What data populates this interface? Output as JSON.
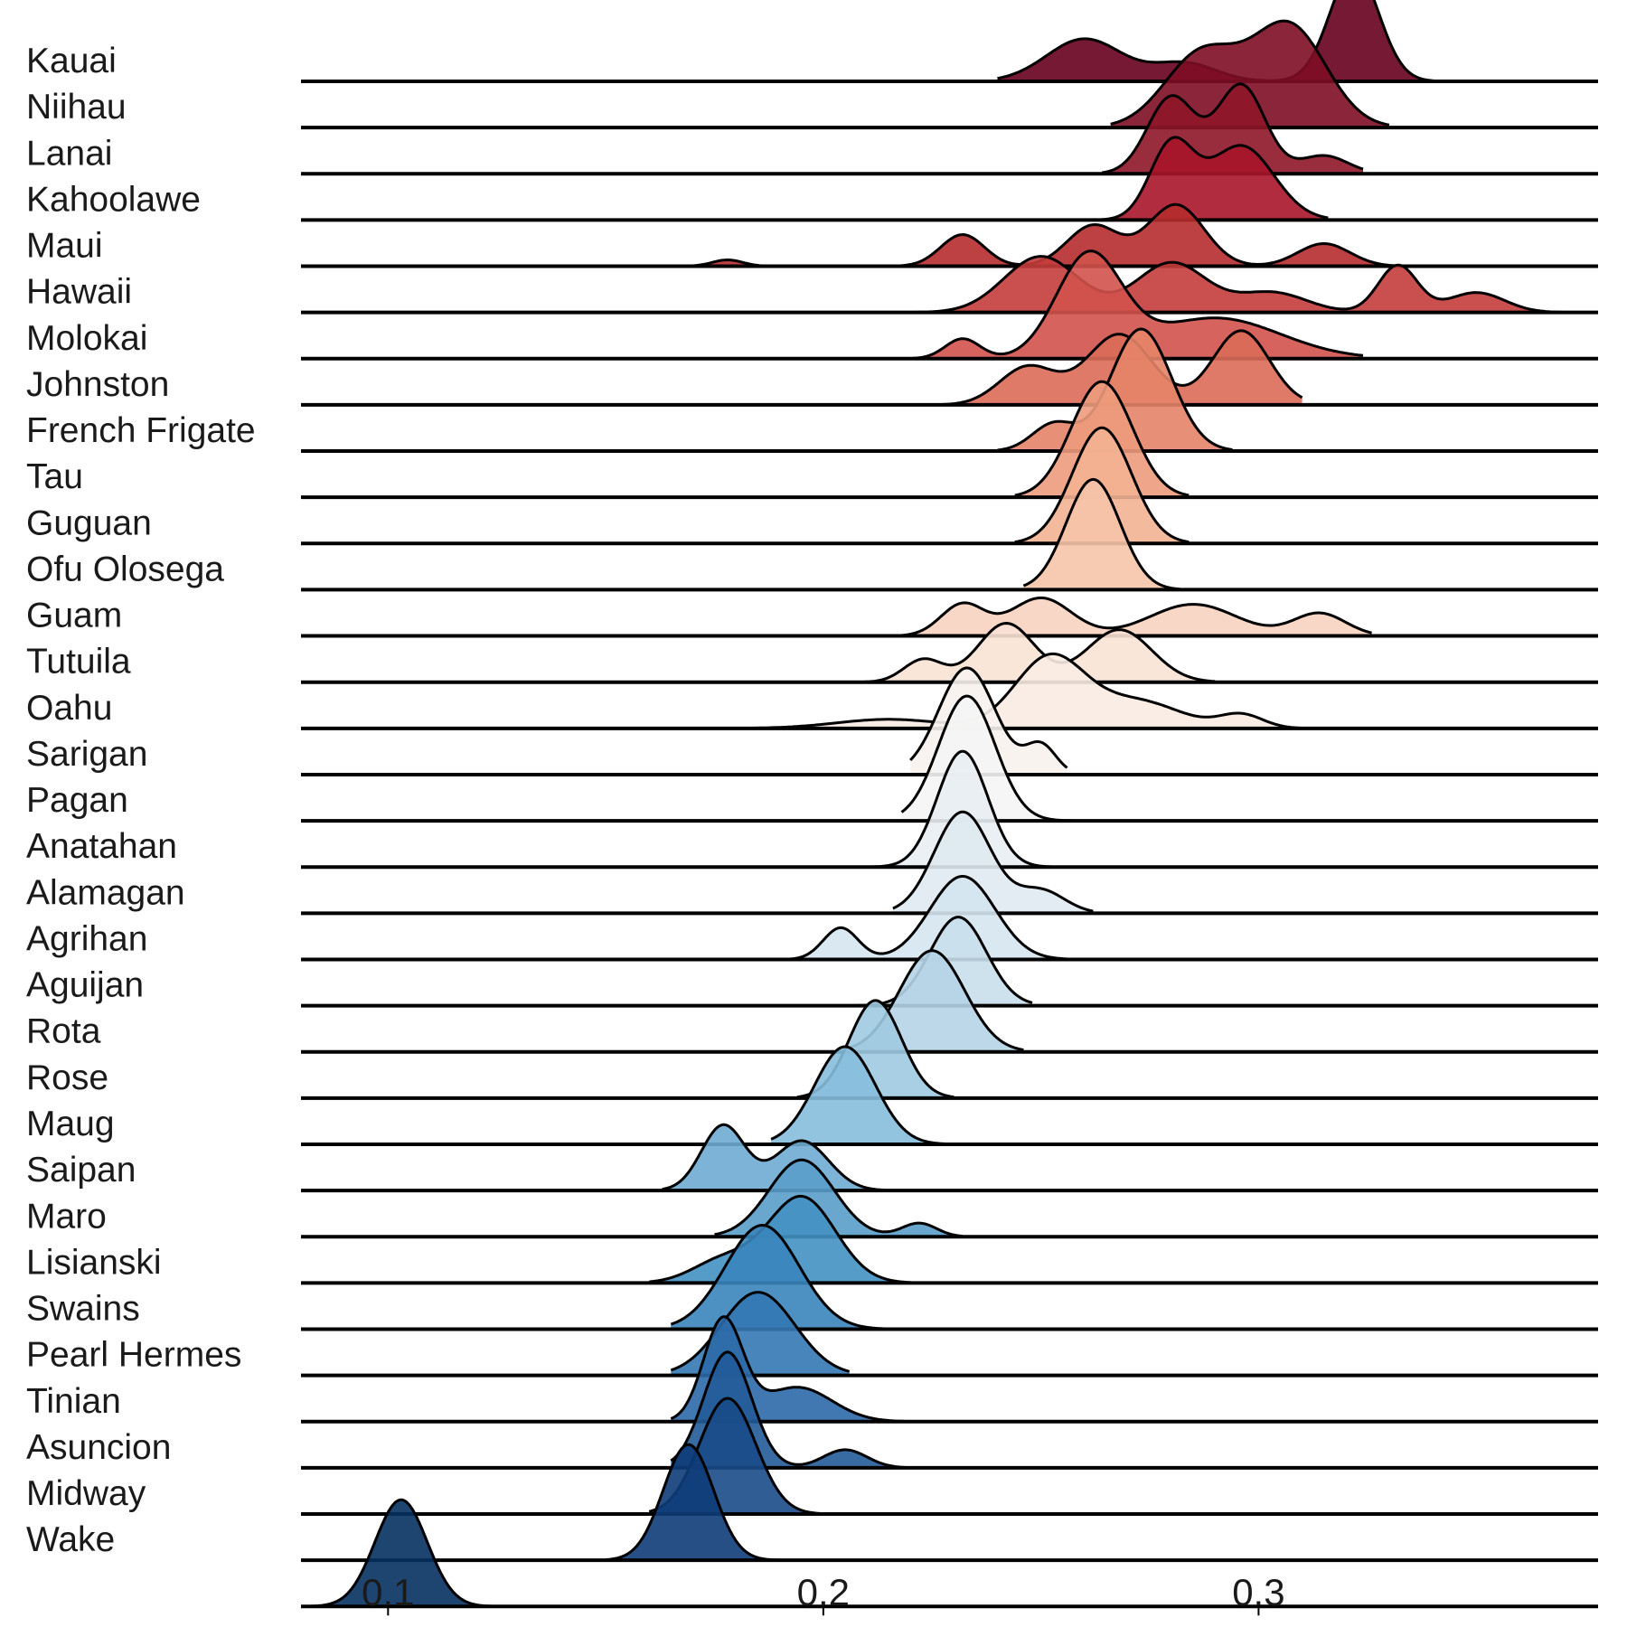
{
  "chart_data": {
    "type": "ridgeline",
    "xlim": [
      0.08,
      0.378
    ],
    "x_ticks": [
      0.1,
      0.2,
      0.3
    ],
    "x_tick_labels": [
      "0.1",
      "0.2",
      "0.3"
    ],
    "title": "",
    "xlabel": "",
    "ylabel": "",
    "colormap": "RdBu",
    "grid": false,
    "series": [
      {
        "name": "Kauai",
        "color": "#67001f",
        "xmin": 0.24,
        "xmax": 0.346,
        "peaks": [
          [
            0.322,
            0.0056,
            0.0125
          ],
          [
            0.26,
            0.0087,
            0.0047
          ],
          [
            0.283,
            0.0072,
            0.002
          ]
        ]
      },
      {
        "name": "Niihau",
        "color": "#7e0d24",
        "xmin": 0.266,
        "xmax": 0.33,
        "peaks": [
          [
            0.307,
            0.0085,
            0.0112
          ],
          [
            0.287,
            0.0085,
            0.0082
          ]
        ]
      },
      {
        "name": "Lanai",
        "color": "#8e1628",
        "xmin": 0.264,
        "xmax": 0.324,
        "peaks": [
          [
            0.28,
            0.0055,
            0.0085
          ],
          [
            0.296,
            0.0055,
            0.0098
          ],
          [
            0.315,
            0.0055,
            0.002
          ]
        ]
      },
      {
        "name": "Kahoolawe",
        "color": "#a81529",
        "xmin": 0.264,
        "xmax": 0.316,
        "peaks": [
          [
            0.28,
            0.005,
            0.0082
          ],
          [
            0.296,
            0.0075,
            0.0082
          ]
        ]
      },
      {
        "name": "Maui",
        "color": "#b62c2e",
        "xmin": 0.17,
        "xmax": 0.342,
        "peaks": [
          [
            0.178,
            0.0035,
            0.0007
          ],
          [
            0.232,
            0.005,
            0.0035
          ],
          [
            0.262,
            0.006,
            0.0045
          ],
          [
            0.281,
            0.0065,
            0.0068
          ],
          [
            0.315,
            0.006,
            0.0025
          ]
        ]
      },
      {
        "name": "Hawaii",
        "color": "#c43c3c",
        "xmin": 0.22,
        "xmax": 0.37,
        "peaks": [
          [
            0.25,
            0.0085,
            0.0062
          ],
          [
            0.28,
            0.008,
            0.0055
          ],
          [
            0.303,
            0.008,
            0.0022
          ],
          [
            0.332,
            0.0045,
            0.0052
          ],
          [
            0.35,
            0.0065,
            0.0022
          ]
        ]
      },
      {
        "name": "Molokai",
        "color": "#d1524b",
        "xmin": 0.22,
        "xmax": 0.324,
        "peaks": [
          [
            0.232,
            0.004,
            0.0022
          ],
          [
            0.261,
            0.0075,
            0.0112
          ],
          [
            0.29,
            0.015,
            0.0045
          ]
        ]
      },
      {
        "name": "Johnston",
        "color": "#dc6b59",
        "xmin": 0.224,
        "xmax": 0.31,
        "peaks": [
          [
            0.247,
            0.0065,
            0.0042
          ],
          [
            0.268,
            0.0075,
            0.0078
          ],
          [
            0.296,
            0.0065,
            0.0082
          ]
        ]
      },
      {
        "name": "French Frigate",
        "color": "#e58468",
        "xmin": 0.24,
        "xmax": 0.294,
        "peaks": [
          [
            0.253,
            0.005,
            0.003
          ],
          [
            0.273,
            0.007,
            0.0135
          ]
        ]
      },
      {
        "name": "Tau",
        "color": "#ed9b7c",
        "xmin": 0.244,
        "xmax": 0.284,
        "peaks": [
          [
            0.264,
            0.007,
            0.0128
          ]
        ]
      },
      {
        "name": "Guguan",
        "color": "#f3b292",
        "xmin": 0.244,
        "xmax": 0.284,
        "peaks": [
          [
            0.264,
            0.0068,
            0.0128
          ]
        ]
      },
      {
        "name": "Ofu Olosega",
        "color": "#f6c4aa",
        "xmin": 0.246,
        "xmax": 0.282,
        "peaks": [
          [
            0.262,
            0.0062,
            0.0122
          ]
        ]
      },
      {
        "name": "Guam",
        "color": "#f8d3c0",
        "xmin": 0.215,
        "xmax": 0.326,
        "peaks": [
          [
            0.232,
            0.005,
            0.0035
          ],
          [
            0.25,
            0.007,
            0.0042
          ],
          [
            0.285,
            0.01,
            0.0035
          ],
          [
            0.314,
            0.006,
            0.0025
          ]
        ]
      },
      {
        "name": "Tutuila",
        "color": "#fae2d5",
        "xmin": 0.208,
        "xmax": 0.29,
        "peaks": [
          [
            0.223,
            0.0045,
            0.0025
          ],
          [
            0.242,
            0.0065,
            0.0065
          ],
          [
            0.268,
            0.0075,
            0.0058
          ]
        ]
      },
      {
        "name": "Oahu",
        "color": "#f9ebe3",
        "xmin": 0.18,
        "xmax": 0.31,
        "peaks": [
          [
            0.215,
            0.012,
            0.001
          ],
          [
            0.252,
            0.008,
            0.0078
          ],
          [
            0.272,
            0.01,
            0.003
          ],
          [
            0.296,
            0.005,
            0.0015
          ]
        ]
      },
      {
        "name": "Sarigan",
        "color": "#f8f2ee",
        "xmin": 0.22,
        "xmax": 0.256,
        "peaks": [
          [
            0.233,
            0.0065,
            0.0118
          ],
          [
            0.25,
            0.0035,
            0.0032
          ]
        ]
      },
      {
        "name": "Pagan",
        "color": "#f5f5f5",
        "xmin": 0.218,
        "xmax": 0.26,
        "peaks": [
          [
            0.233,
            0.0065,
            0.0138
          ]
        ]
      },
      {
        "name": "Anatahan",
        "color": "#e8eef3",
        "xmin": 0.21,
        "xmax": 0.258,
        "peaks": [
          [
            0.232,
            0.0058,
            0.0128
          ]
        ]
      },
      {
        "name": "Alamagan",
        "color": "#dfeaf1",
        "xmin": 0.216,
        "xmax": 0.262,
        "peaks": [
          [
            0.232,
            0.0065,
            0.0112
          ],
          [
            0.25,
            0.0055,
            0.0025
          ]
        ]
      },
      {
        "name": "Agrihan",
        "color": "#d5e6f0",
        "xmin": 0.19,
        "xmax": 0.256,
        "peaks": [
          [
            0.204,
            0.004,
            0.0035
          ],
          [
            0.232,
            0.0075,
            0.0092
          ]
        ]
      },
      {
        "name": "Aguijan",
        "color": "#c9dfec",
        "xmin": 0.205,
        "xmax": 0.248,
        "peaks": [
          [
            0.231,
            0.0065,
            0.0098
          ]
        ]
      },
      {
        "name": "Rota",
        "color": "#b6d4e7",
        "xmin": 0.205,
        "xmax": 0.246,
        "peaks": [
          [
            0.225,
            0.0075,
            0.0112
          ]
        ]
      },
      {
        "name": "Rose",
        "color": "#9ecae1",
        "xmin": 0.194,
        "xmax": 0.23,
        "peaks": [
          [
            0.212,
            0.006,
            0.0108
          ]
        ]
      },
      {
        "name": "Maug",
        "color": "#86bcdc",
        "xmin": 0.188,
        "xmax": 0.23,
        "peaks": [
          [
            0.205,
            0.007,
            0.0108
          ]
        ]
      },
      {
        "name": "Saipan",
        "color": "#6fabd2",
        "xmin": 0.163,
        "xmax": 0.214,
        "peaks": [
          [
            0.177,
            0.005,
            0.0072
          ],
          [
            0.195,
            0.0062,
            0.0055
          ]
        ]
      },
      {
        "name": "Maro",
        "color": "#599dca",
        "xmin": 0.175,
        "xmax": 0.232,
        "peaks": [
          [
            0.195,
            0.0075,
            0.0085
          ],
          [
            0.222,
            0.004,
            0.0015
          ]
        ]
      },
      {
        "name": "Lisianski",
        "color": "#4391c2",
        "xmin": 0.16,
        "xmax": 0.22,
        "peaks": [
          [
            0.177,
            0.007,
            0.0025
          ],
          [
            0.195,
            0.0078,
            0.0095
          ]
        ]
      },
      {
        "name": "Swains",
        "color": "#3a85bb",
        "xmin": 0.165,
        "xmax": 0.225,
        "peaks": [
          [
            0.186,
            0.0085,
            0.0115
          ]
        ]
      },
      {
        "name": "Pearl Hermes",
        "color": "#3478b4",
        "xmin": 0.165,
        "xmax": 0.206,
        "peaks": [
          [
            0.185,
            0.0085,
            0.0092
          ]
        ]
      },
      {
        "name": "Tinian",
        "color": "#2c69a8",
        "xmin": 0.165,
        "xmax": 0.22,
        "peaks": [
          [
            0.177,
            0.0045,
            0.0112
          ],
          [
            0.194,
            0.008,
            0.0038
          ]
        ]
      },
      {
        "name": "Asuncion",
        "color": "#225b98",
        "xmin": 0.165,
        "xmax": 0.22,
        "peaks": [
          [
            0.178,
            0.0055,
            0.0128
          ],
          [
            0.205,
            0.005,
            0.002
          ]
        ]
      },
      {
        "name": "Midway",
        "color": "#184b88",
        "xmin": 0.16,
        "xmax": 0.2,
        "peaks": [
          [
            0.178,
            0.0065,
            0.0128
          ]
        ]
      },
      {
        "name": "Wake",
        "color": "#0e3c78",
        "xmin": 0.15,
        "xmax": 0.19,
        "peaks": [
          [
            0.169,
            0.0058,
            0.0128
          ]
        ]
      },
      {
        "name": "",
        "color": "#053061",
        "xmin": 0.08,
        "xmax": 0.13,
        "peaks": [
          [
            0.103,
            0.006,
            0.0118
          ]
        ]
      }
    ]
  }
}
